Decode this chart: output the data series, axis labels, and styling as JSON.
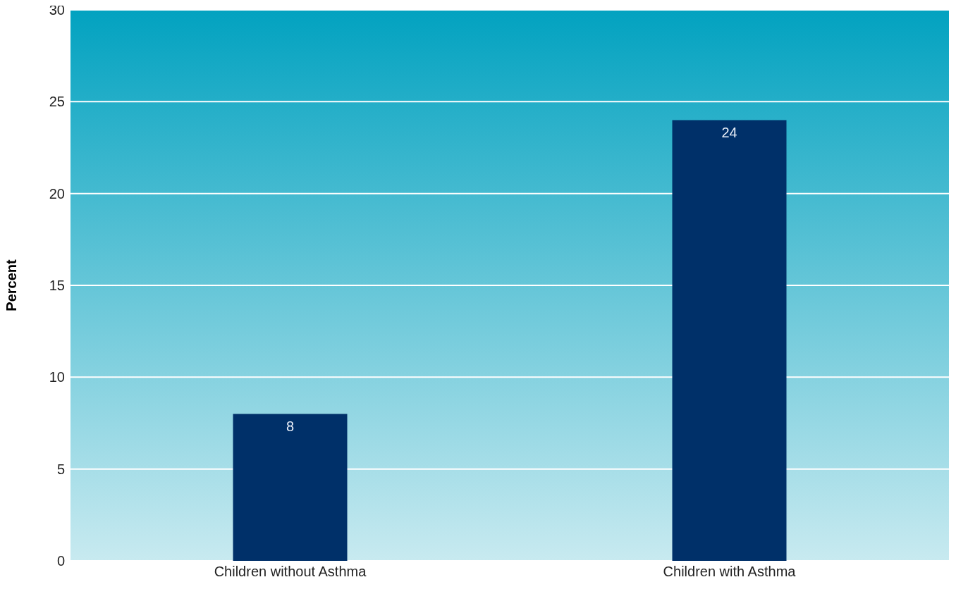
{
  "chart_data": {
    "type": "bar",
    "ylabel": "Percent",
    "categories": [
      "Children without Asthma",
      "Children with Asthma"
    ],
    "values": [
      8,
      24
    ],
    "color": "#003069",
    "ylim": [
      0,
      30
    ],
    "yticks": [
      0,
      5,
      10,
      15,
      20,
      25,
      30
    ],
    "grid": "y",
    "data_labels": true
  }
}
